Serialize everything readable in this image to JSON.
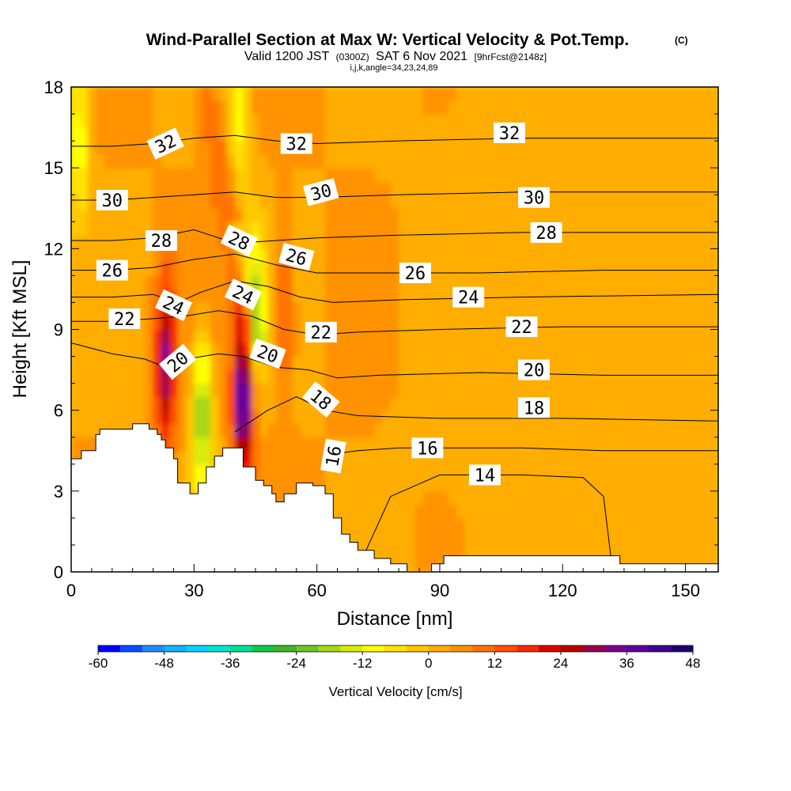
{
  "title": {
    "main": "Wind-Parallel Section at Max W: Vertical Velocity & Pot.Temp.",
    "copyright": "(C)",
    "valid_prefix": "Valid 1200 JST",
    "valid_utc": "(0300Z)",
    "valid_date": "SAT 6 Nov 2021",
    "forecast": "[9hrFcst@2148z]",
    "indices": "i,j,k,angle=34,23,24,89"
  },
  "chart_data": {
    "type": "heatmap",
    "xlabel": "Distance [nm]",
    "ylabel": "Height [Kft MSL]",
    "xlim": [
      0,
      158
    ],
    "ylim": [
      0,
      18
    ],
    "x_ticks": [
      "0",
      "30",
      "60",
      "90",
      "120",
      "150"
    ],
    "x_tick_values": [
      0,
      30,
      60,
      90,
      120,
      150
    ],
    "y_ticks": [
      "0",
      "3",
      "6",
      "9",
      "12",
      "15",
      "18"
    ],
    "y_tick_values": [
      0,
      3,
      6,
      9,
      12,
      15,
      18
    ],
    "colorbar": {
      "label": "Vertical Velocity [cm/s]",
      "min": -60,
      "max": 48,
      "step": 4,
      "tick_labels": [
        "-60",
        "-48",
        "-36",
        "-24",
        "-12",
        "0",
        "12",
        "24",
        "36",
        "48"
      ],
      "tick_values": [
        -60,
        -48,
        -36,
        -24,
        -12,
        0,
        12,
        24,
        36,
        48
      ],
      "colors": [
        "#0000ff",
        "#0a4cff",
        "#1f8bff",
        "#15b4ff",
        "#00d7ff",
        "#00e6d0",
        "#00df98",
        "#10c84c",
        "#3fb52a",
        "#70c42a",
        "#a8d818",
        "#d8ec08",
        "#ffff00",
        "#ffe400",
        "#ffc800",
        "#ffad00",
        "#ff9200",
        "#ff7300",
        "#ff5000",
        "#f52a00",
        "#dd0000",
        "#b80000",
        "#980050",
        "#7c0090",
        "#6000a0",
        "#40008c",
        "#200070"
      ]
    },
    "updraft_maxima": [
      {
        "x": 23,
        "height": 7.8,
        "w": 32
      },
      {
        "x": 42,
        "height": 6.5,
        "w": 44
      },
      {
        "x": 52,
        "height": 9.5,
        "w": 16
      }
    ],
    "downdraft_minima": [
      {
        "x": 32,
        "height": 5.8,
        "w": -22
      },
      {
        "x": 45,
        "height": 10.0,
        "w": -16
      },
      {
        "x": 2,
        "height": 16.0,
        "w": -12
      },
      {
        "x": 41,
        "height": 17.0,
        "w": -10
      }
    ],
    "contours": {
      "variable": "Potential Temperature",
      "lines": [
        {
          "level": 14,
          "x": [
            72,
            78,
            90,
            110,
            125,
            130,
            132
          ],
          "y": [
            0.8,
            2.8,
            3.6,
            3.6,
            3.5,
            2.8,
            0.3
          ]
        },
        {
          "level": 16,
          "x": [
            62,
            65,
            70,
            80,
            95,
            110,
            130,
            150,
            158
          ],
          "y": [
            4.1,
            4.4,
            4.5,
            4.6,
            4.6,
            4.6,
            4.5,
            4.5,
            4.5
          ]
        },
        {
          "level": 18,
          "x": [
            40,
            48,
            55,
            62,
            70,
            90,
            120,
            158
          ],
          "y": [
            5.2,
            6.0,
            6.5,
            6.0,
            5.8,
            5.7,
            5.7,
            5.6
          ]
        },
        {
          "level": 20,
          "x": [
            0,
            10,
            18,
            23,
            28,
            36,
            42,
            50,
            58,
            65,
            75,
            100,
            130,
            158
          ],
          "y": [
            8.5,
            8.1,
            7.9,
            7.6,
            7.9,
            8.1,
            8.0,
            7.6,
            7.5,
            7.2,
            7.3,
            7.4,
            7.3,
            7.3
          ]
        },
        {
          "level": 22,
          "x": [
            0,
            10,
            20,
            28,
            36,
            44,
            52,
            60,
            70,
            90,
            120,
            158
          ],
          "y": [
            9.3,
            9.3,
            9.4,
            9.5,
            9.7,
            9.5,
            9.0,
            8.8,
            8.9,
            9.0,
            9.1,
            9.1
          ]
        },
        {
          "level": 24,
          "x": [
            0,
            10,
            20,
            26,
            32,
            40,
            48,
            56,
            64,
            80,
            110,
            158
          ],
          "y": [
            10.2,
            10.2,
            10.3,
            10.0,
            10.4,
            10.8,
            10.6,
            10.2,
            10.0,
            10.1,
            10.2,
            10.3
          ]
        },
        {
          "level": 26,
          "x": [
            0,
            10,
            20,
            30,
            40,
            50,
            60,
            75,
            100,
            130,
            158
          ],
          "y": [
            11.2,
            11.2,
            11.3,
            11.6,
            11.8,
            11.4,
            11.1,
            11.1,
            11.1,
            11.2,
            11.2
          ]
        },
        {
          "level": 28,
          "x": [
            0,
            10,
            20,
            30,
            40,
            50,
            60,
            80,
            110,
            140,
            158
          ],
          "y": [
            12.3,
            12.3,
            12.4,
            12.7,
            12.2,
            12.3,
            12.4,
            12.5,
            12.6,
            12.6,
            12.6
          ]
        },
        {
          "level": 30,
          "x": [
            0,
            10,
            20,
            30,
            40,
            50,
            60,
            80,
            110,
            140,
            158
          ],
          "y": [
            13.8,
            13.8,
            13.9,
            14.0,
            14.1,
            13.9,
            13.9,
            14.0,
            14.1,
            14.1,
            14.1
          ]
        },
        {
          "level": 32,
          "x": [
            0,
            10,
            20,
            30,
            40,
            50,
            60,
            80,
            110,
            140,
            158
          ],
          "y": [
            15.8,
            15.8,
            15.9,
            16.1,
            16.2,
            16.0,
            15.9,
            16.0,
            16.1,
            16.1,
            16.1
          ]
        }
      ],
      "labels": [
        {
          "text": "32",
          "x": 23,
          "height": 15.9,
          "angle": -25
        },
        {
          "text": "32",
          "x": 55,
          "height": 15.9,
          "angle": 0
        },
        {
          "text": "32",
          "x": 107,
          "height": 16.3,
          "angle": 0
        },
        {
          "text": "30",
          "x": 10,
          "height": 13.8,
          "angle": 0
        },
        {
          "text": "30",
          "x": 61,
          "height": 14.1,
          "angle": -15
        },
        {
          "text": "30",
          "x": 113,
          "height": 13.9,
          "angle": 0
        },
        {
          "text": "28",
          "x": 22,
          "height": 12.3,
          "angle": 0
        },
        {
          "text": "28",
          "x": 41,
          "height": 12.3,
          "angle": 25
        },
        {
          "text": "28",
          "x": 116,
          "height": 12.6,
          "angle": 0
        },
        {
          "text": "26",
          "x": 10,
          "height": 11.2,
          "angle": 0
        },
        {
          "text": "26",
          "x": 55,
          "height": 11.7,
          "angle": 15
        },
        {
          "text": "26",
          "x": 84,
          "height": 11.1,
          "angle": 0
        },
        {
          "text": "24",
          "x": 25,
          "height": 9.9,
          "angle": 25
        },
        {
          "text": "24",
          "x": 42,
          "height": 10.3,
          "angle": 25
        },
        {
          "text": "24",
          "x": 97,
          "height": 10.2,
          "angle": 0
        },
        {
          "text": "22",
          "x": 13,
          "height": 9.4,
          "angle": 0
        },
        {
          "text": "22",
          "x": 61,
          "height": 8.9,
          "angle": 0
        },
        {
          "text": "22",
          "x": 110,
          "height": 9.1,
          "angle": 0
        },
        {
          "text": "20",
          "x": 26,
          "height": 7.8,
          "angle": -40
        },
        {
          "text": "20",
          "x": 48,
          "height": 8.1,
          "angle": 20
        },
        {
          "text": "20",
          "x": 113,
          "height": 7.5,
          "angle": 0
        },
        {
          "text": "18",
          "x": 61,
          "height": 6.4,
          "angle": 40
        },
        {
          "text": "18",
          "x": 113,
          "height": 6.1,
          "angle": 0
        },
        {
          "text": "16",
          "x": 64,
          "height": 4.3,
          "angle": -80
        },
        {
          "text": "16",
          "x": 87,
          "height": 4.6,
          "angle": 0
        },
        {
          "text": "14",
          "x": 101,
          "height": 3.6,
          "angle": 0
        }
      ]
    },
    "terrain": {
      "x": [
        0,
        2.5,
        2.5,
        6,
        6,
        7,
        7,
        13,
        13,
        15,
        15,
        17,
        17,
        19,
        19,
        21,
        21,
        22,
        22,
        23,
        23,
        25,
        25,
        26,
        26,
        29,
        29,
        31,
        31,
        33,
        33,
        35,
        35,
        37,
        37,
        42,
        42,
        45,
        45,
        47,
        47,
        49,
        49,
        50,
        50,
        52,
        52,
        55,
        55,
        57,
        57,
        59,
        59,
        62,
        62,
        64,
        64,
        66,
        66,
        68,
        68,
        70,
        70,
        74,
        74,
        78,
        78,
        82,
        82,
        86,
        86,
        88,
        88,
        91,
        91,
        134,
        134,
        139,
        139,
        158
      ],
      "y": [
        4.2,
        4.2,
        4.5,
        4.5,
        5.1,
        5.1,
        5.3,
        5.3,
        5.3,
        5.3,
        5.5,
        5.5,
        5.5,
        5.5,
        5.3,
        5.3,
        5.1,
        5.1,
        4.9,
        4.9,
        4.6,
        4.6,
        4.2,
        4.2,
        3.3,
        3.3,
        2.9,
        2.9,
        3.3,
        3.3,
        3.9,
        3.9,
        4.3,
        4.3,
        4.6,
        4.6,
        3.9,
        3.9,
        3.4,
        3.4,
        3.2,
        3.2,
        2.9,
        2.9,
        2.6,
        2.6,
        2.9,
        2.9,
        3.3,
        3.3,
        3.3,
        3.3,
        3.2,
        3.2,
        2.9,
        2.9,
        2.0,
        2.0,
        1.4,
        1.4,
        1.1,
        1.1,
        0.8,
        0.8,
        0.5,
        0.5,
        0.3,
        0.3,
        0.0,
        0.0,
        0.0,
        0.0,
        0.3,
        0.3,
        0.6,
        0.6,
        0.3,
        0.3,
        0.3,
        0.3
      ]
    }
  }
}
